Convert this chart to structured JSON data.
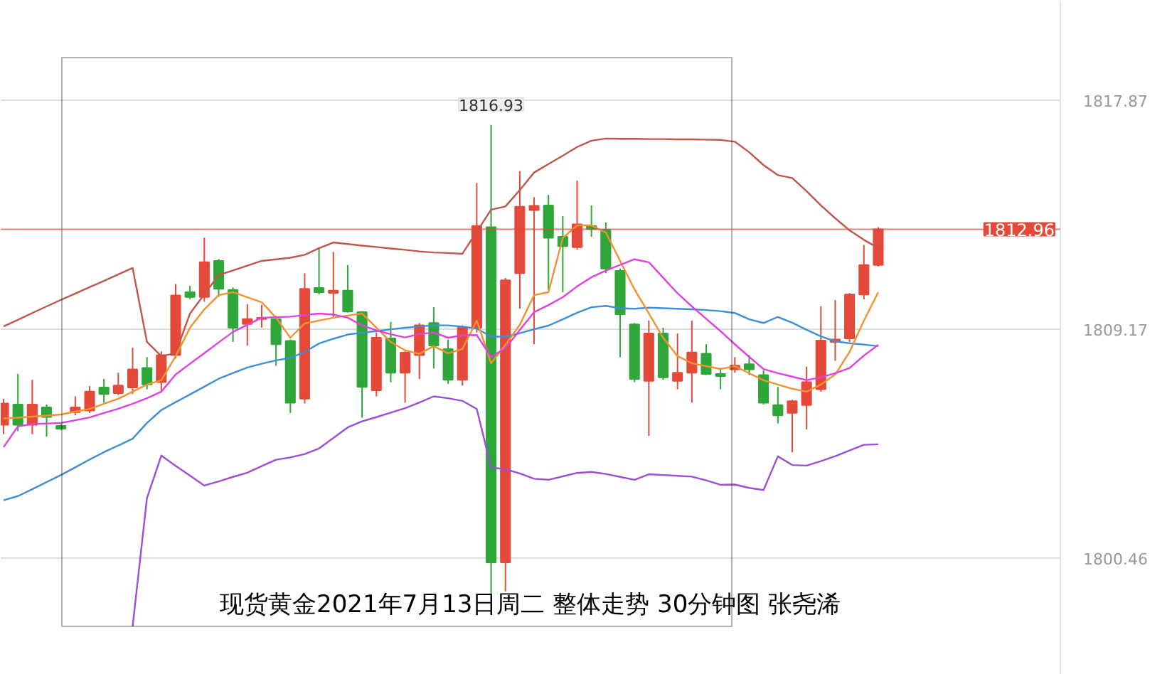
{
  "chart_data": {
    "type": "candlestick",
    "title": "现货黄金2021年7月13日周二 整体走势  30分钟图 张尧浠",
    "categories": [
      null,
      null,
      null,
      null,
      null,
      null,
      null,
      null,
      null,
      null,
      null,
      null,
      null,
      null,
      null,
      null,
      null,
      null,
      null,
      null,
      null,
      null,
      null,
      null,
      null,
      null,
      null,
      null,
      null,
      null,
      null,
      null,
      null,
      null,
      null,
      null,
      null,
      null,
      null,
      null,
      null,
      null,
      null,
      null,
      null,
      null,
      null,
      null,
      null,
      null,
      null,
      null,
      null,
      null,
      null,
      null,
      null,
      null,
      null,
      null,
      null,
      null
    ],
    "ohlc": [
      [
        1805.53,
        1806.52,
        1805.17,
        1806.34
      ],
      [
        1806.3,
        1807.46,
        1805.29,
        1805.53
      ],
      [
        1805.53,
        1807.24,
        1805.17,
        1806.3
      ],
      [
        1806.19,
        1806.3,
        1805.08,
        1805.83
      ],
      [
        1805.49,
        1805.55,
        1805.33,
        1805.38
      ],
      [
        1806.01,
        1806.61,
        1805.89,
        1806.19
      ],
      [
        1806.07,
        1807.0,
        1805.98,
        1806.79
      ],
      [
        1806.95,
        1807.27,
        1806.37,
        1806.7
      ],
      [
        1806.73,
        1807.51,
        1806.66,
        1807.02
      ],
      [
        1806.95,
        1808.46,
        1806.7,
        1807.64
      ],
      [
        1807.69,
        1808.1,
        1806.88,
        1807.06
      ],
      [
        1807.15,
        1808.32,
        1806.79,
        1808.18
      ],
      [
        1808.18,
        1810.88,
        1808.05,
        1810.45
      ],
      [
        1810.57,
        1810.81,
        1810.3,
        1810.39
      ],
      [
        1810.39,
        1812.64,
        1810.21,
        1811.71
      ],
      [
        1811.76,
        1811.83,
        1810.39,
        1810.7
      ],
      [
        1810.66,
        1810.75,
        1808.68,
        1809.22
      ],
      [
        1809.36,
        1810.12,
        1808.54,
        1809.55
      ],
      [
        1809.55,
        1810.09,
        1809.22,
        1809.6
      ],
      [
        1809.55,
        1809.67,
        1807.78,
        1808.59
      ],
      [
        1808.72,
        1808.77,
        1805.98,
        1806.37
      ],
      [
        1806.52,
        1811.29,
        1806.34,
        1810.7
      ],
      [
        1810.73,
        1812.28,
        1810.48,
        1810.57
      ],
      [
        1810.54,
        1812.1,
        1809.58,
        1810.63
      ],
      [
        1810.63,
        1811.6,
        1809.8,
        1809.83
      ],
      [
        1809.81,
        1809.85,
        1805.8,
        1806.97
      ],
      [
        1806.84,
        1809.04,
        1806.61,
        1808.84
      ],
      [
        1808.81,
        1809.44,
        1807.15,
        1807.51
      ],
      [
        1807.51,
        1808.32,
        1806.37,
        1808.27
      ],
      [
        1808.18,
        1809.4,
        1807.27,
        1809.31
      ],
      [
        1809.4,
        1810.0,
        1807.67,
        1808.54
      ],
      [
        1808.41,
        1808.77,
        1807.09,
        1807.24
      ],
      [
        1807.24,
        1809.31,
        1807.02,
        1809.22
      ],
      [
        1809.22,
        1814.72,
        1809.04,
        1813.09
      ],
      [
        1813.04,
        1816.93,
        1799.1,
        1800.3
      ],
      [
        1800.3,
        1811.11,
        1799.2,
        1811.02
      ],
      [
        1811.29,
        1815.17,
        1809.94,
        1813.82
      ],
      [
        1813.69,
        1814.18,
        1808.59,
        1813.85
      ],
      [
        1813.87,
        1814.27,
        1810.66,
        1812.64
      ],
      [
        1812.68,
        1813.46,
        1810.57,
        1812.32
      ],
      [
        1812.28,
        1814.81,
        1812.19,
        1813.15
      ],
      [
        1813.09,
        1813.87,
        1812.68,
        1812.97
      ],
      [
        1812.95,
        1813.22,
        1811.29,
        1811.47
      ],
      [
        1811.38,
        1811.47,
        1808.1,
        1809.73
      ],
      [
        1809.35,
        1809.4,
        1807.15,
        1807.27
      ],
      [
        1807.2,
        1809.49,
        1805.11,
        1809.0
      ],
      [
        1809.0,
        1809.22,
        1807.24,
        1807.33
      ],
      [
        1807.2,
        1809.0,
        1806.88,
        1807.51
      ],
      [
        1807.51,
        1809.49,
        1806.37,
        1808.28
      ],
      [
        1808.23,
        1808.59,
        1807.42,
        1807.46
      ],
      [
        1807.46,
        1807.69,
        1806.88,
        1807.38
      ],
      [
        1807.64,
        1808.1,
        1807.51,
        1807.78
      ],
      [
        1807.83,
        1808.18,
        1807.42,
        1807.64
      ],
      [
        1807.42,
        1807.6,
        1806.3,
        1806.37
      ],
      [
        1806.28,
        1806.97,
        1805.58,
        1805.89
      ],
      [
        1805.98,
        1806.48,
        1804.48,
        1806.43
      ],
      [
        1806.28,
        1807.74,
        1805.35,
        1807.15
      ],
      [
        1806.88,
        1810.03,
        1806.79,
        1808.73
      ],
      [
        1808.68,
        1810.27,
        1807.96,
        1808.77
      ],
      [
        1808.81,
        1810.54,
        1808.68,
        1810.48
      ],
      [
        1810.48,
        1812.37,
        1810.3,
        1811.6
      ],
      [
        1811.6,
        1813.04,
        1811.55,
        1812.96
      ]
    ],
    "colors": [
      "#e5493a",
      "#2ea63a",
      "#e5493a",
      "#2ea63a",
      "#2ea63a",
      "#e5493a",
      "#e5493a",
      "#2ea63a",
      "#e5493a",
      "#e5493a",
      "#2ea63a",
      "#e5493a",
      "#e5493a",
      "#2ea63a",
      "#e5493a",
      "#2ea63a",
      "#2ea63a",
      "#e5493a",
      "#e5493a",
      "#2ea63a",
      "#2ea63a",
      "#e5493a",
      "#2ea63a",
      "#e5493a",
      "#2ea63a",
      "#2ea63a",
      "#e5493a",
      "#2ea63a",
      "#e5493a",
      "#e5493a",
      "#2ea63a",
      "#2ea63a",
      "#e5493a",
      "#e5493a",
      "#2ea63a",
      "#e5493a",
      "#e5493a",
      "#e5493a",
      "#2ea63a",
      "#2ea63a",
      "#e5493a",
      "#2ea63a",
      "#2ea63a",
      "#2ea63a",
      "#2ea63a",
      "#e5493a",
      "#2ea63a",
      "#e5493a",
      "#e5493a",
      "#2ea63a",
      "#2ea63a",
      "#e5493a",
      "#2ea63a",
      "#2ea63a",
      "#2ea63a",
      "#e5493a",
      "#e5493a",
      "#e5493a",
      "#e5493a",
      "#e5493a",
      "#e5493a",
      "#e5493a"
    ],
    "series": [
      {
        "type": "line",
        "color": "#c0564a",
        "values": [
          1809.27,
          1809.52,
          1809.78,
          1810.03,
          1810.28,
          1810.52,
          1810.76,
          1811.0,
          1811.25,
          1811.49,
          1808.68,
          1808.14,
          1808.25,
          1809.76,
          1810.49,
          1811.22,
          1811.4,
          1811.58,
          1811.76,
          1811.82,
          1811.88,
          1811.99,
          1812.24,
          1812.46,
          1812.4,
          1812.34,
          1812.29,
          1812.23,
          1812.18,
          1812.12,
          1812.08,
          1812.06,
          1812.03,
          1812.87,
          1813.71,
          1813.83,
          1814.45,
          1815.12,
          1815.44,
          1815.76,
          1816.09,
          1816.33,
          1816.41,
          1816.4,
          1816.4,
          1816.39,
          1816.39,
          1816.38,
          1816.38,
          1816.37,
          1816.36,
          1816.29,
          1815.89,
          1815.4,
          1815.02,
          1814.91,
          1814.41,
          1813.87,
          1813.38,
          1812.92,
          1812.56,
          1812.25
        ]
      },
      {
        "type": "line",
        "color": "#3f8fd8",
        "values": [
          1802.66,
          1802.82,
          1803.08,
          1803.35,
          1803.62,
          1803.91,
          1804.21,
          1804.49,
          1804.74,
          1805.0,
          1805.6,
          1806.09,
          1806.39,
          1806.68,
          1806.98,
          1807.28,
          1807.5,
          1807.71,
          1807.85,
          1807.98,
          1808.07,
          1808.3,
          1808.62,
          1808.8,
          1808.96,
          1809.03,
          1809.09,
          1809.16,
          1809.22,
          1809.27,
          1809.31,
          1809.31,
          1809.26,
          1809.19,
          1808.88,
          1808.88,
          1809.01,
          1809.16,
          1809.3,
          1809.54,
          1809.79,
          1810.0,
          1810.05,
          1809.96,
          1809.94,
          1809.98,
          1809.96,
          1809.94,
          1809.92,
          1809.89,
          1809.85,
          1809.78,
          1809.54,
          1809.4,
          1809.63,
          1809.41,
          1809.14,
          1808.89,
          1808.7,
          1808.63,
          1808.58,
          1808.52
        ]
      },
      {
        "type": "line",
        "color": "#9b4fd6",
        "values": [
          null,
          null,
          null,
          null,
          null,
          null,
          null,
          null,
          null,
          1797.87,
          1802.74,
          1804.36,
          1803.97,
          1803.6,
          1803.22,
          1803.38,
          1803.55,
          1803.71,
          1803.96,
          1804.2,
          1804.29,
          1804.42,
          1804.63,
          1805.03,
          1805.43,
          1805.66,
          1805.82,
          1805.99,
          1806.16,
          1806.38,
          1806.61,
          1806.54,
          1806.44,
          1806.13,
          1803.91,
          1803.84,
          1803.68,
          1803.48,
          1803.44,
          1803.57,
          1803.7,
          1803.74,
          1803.66,
          1803.55,
          1803.44,
          1803.65,
          1803.62,
          1803.59,
          1803.56,
          1803.42,
          1803.25,
          1803.26,
          1803.13,
          1803.05,
          1804.33,
          1804.0,
          1803.98,
          1804.15,
          1804.34,
          1804.55,
          1804.77,
          1804.79
        ]
      },
      {
        "type": "line",
        "color": "#f0922e",
        "values": [
          1805.77,
          1805.8,
          1805.84,
          1805.88,
          1805.92,
          1806.03,
          1806.13,
          1806.33,
          1806.52,
          1806.79,
          1807.06,
          1807.22,
          1808.14,
          1809.22,
          1809.92,
          1810.46,
          1810.57,
          1810.38,
          1810.19,
          1809.6,
          1808.84,
          1809.38,
          1809.49,
          1809.6,
          1809.68,
          1809.76,
          1809.22,
          1808.68,
          1808.36,
          1808.23,
          1808.52,
          1808.25,
          1808.41,
          1809.49,
          1807.87,
          1808.57,
          1809.33,
          1810.46,
          1810.57,
          1812.63,
          1813.11,
          1813.11,
          1812.84,
          1811.76,
          1810.68,
          1809.76,
          1808.84,
          1808.14,
          1807.87,
          1807.76,
          1807.65,
          1807.76,
          1807.49,
          1807.22,
          1807.06,
          1806.9,
          1806.79,
          1807.06,
          1807.44,
          1808.3,
          1809.49,
          1810.57
        ]
      },
      {
        "type": "line",
        "color": "#e040e0",
        "values": [
          1804.68,
          1805.47,
          1805.56,
          1805.58,
          1805.6,
          1805.7,
          1805.81,
          1805.98,
          1806.14,
          1806.33,
          1806.54,
          1806.79,
          1807.44,
          1807.85,
          1808.25,
          1808.66,
          1809.06,
          1809.33,
          1809.6,
          1809.62,
          1809.64,
          1809.7,
          1809.76,
          1809.72,
          1809.6,
          1809.31,
          1809.12,
          1808.97,
          1808.85,
          1808.98,
          1809.04,
          1808.84,
          1808.93,
          1808.94,
          1808.11,
          1808.44,
          1809.13,
          1809.81,
          1810.08,
          1810.38,
          1810.79,
          1811.14,
          1811.39,
          1811.61,
          1811.82,
          1811.71,
          1811.12,
          1810.53,
          1810.03,
          1809.56,
          1809.09,
          1808.59,
          1808.11,
          1807.65,
          1807.49,
          1807.36,
          1807.23,
          1807.33,
          1807.49,
          1807.69,
          1808.16,
          1808.57
        ]
      }
    ],
    "ylim": [
      1796.03,
      1821.65
    ],
    "yticks": [
      1800.46,
      1809.17,
      1817.87
    ],
    "grid": "y",
    "tick_labels": "y",
    "ref_lines": [
      {
        "axis": "y",
        "value": 1812.96,
        "label": "1812.96",
        "color": "#e5493a"
      }
    ],
    "annotations": [
      "1816.93"
    ]
  }
}
